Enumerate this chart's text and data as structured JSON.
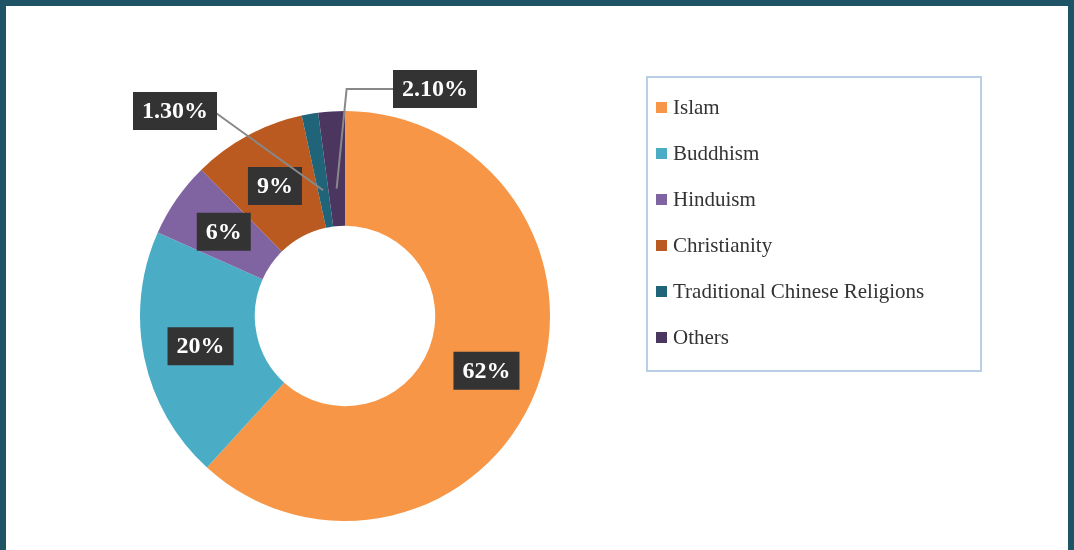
{
  "chart_data": {
    "type": "donut",
    "categories": [
      "Islam",
      "Buddhism",
      "Hinduism",
      "Christianity",
      "Traditional Chinese Religions",
      "Others"
    ],
    "values": [
      62,
      20,
      6,
      9,
      1.3,
      2.1
    ],
    "colors": [
      "#f79646",
      "#4bacc6",
      "#8064a2",
      "#bb5a20",
      "#1f6479",
      "#4b3660"
    ],
    "value_labels": [
      "62%",
      "20%",
      "6%",
      "9%",
      "1.30%",
      "2.10%"
    ],
    "legend": "right"
  }
}
